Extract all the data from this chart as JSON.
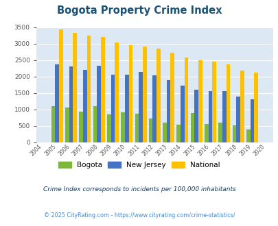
{
  "title": "Bogota Property Crime Index",
  "years": [
    2004,
    2005,
    2006,
    2007,
    2008,
    2009,
    2010,
    2011,
    2012,
    2013,
    2014,
    2015,
    2016,
    2017,
    2018,
    2019,
    2020
  ],
  "bogota": [
    null,
    1100,
    1060,
    940,
    1090,
    860,
    910,
    880,
    720,
    600,
    530,
    890,
    560,
    600,
    520,
    390,
    null
  ],
  "new_jersey": [
    null,
    2360,
    2310,
    2200,
    2320,
    2060,
    2060,
    2150,
    2040,
    1900,
    1720,
    1600,
    1550,
    1550,
    1400,
    1310,
    null
  ],
  "national": [
    null,
    3420,
    3330,
    3250,
    3200,
    3040,
    2950,
    2910,
    2850,
    2720,
    2580,
    2490,
    2460,
    2370,
    2190,
    2110,
    null
  ],
  "bogota_color": "#7db83a",
  "nj_color": "#4472c4",
  "national_color": "#ffc000",
  "bg_color": "#dce9f5",
  "ylim": [
    0,
    3500
  ],
  "footnote1": "Crime Index corresponds to incidents per 100,000 inhabitants",
  "footnote2": "© 2025 CityRating.com - https://www.cityrating.com/crime-statistics/",
  "title_color": "#1a5276",
  "footnote1_color": "#1a3a5c",
  "footnote2_color": "#4a86c8"
}
